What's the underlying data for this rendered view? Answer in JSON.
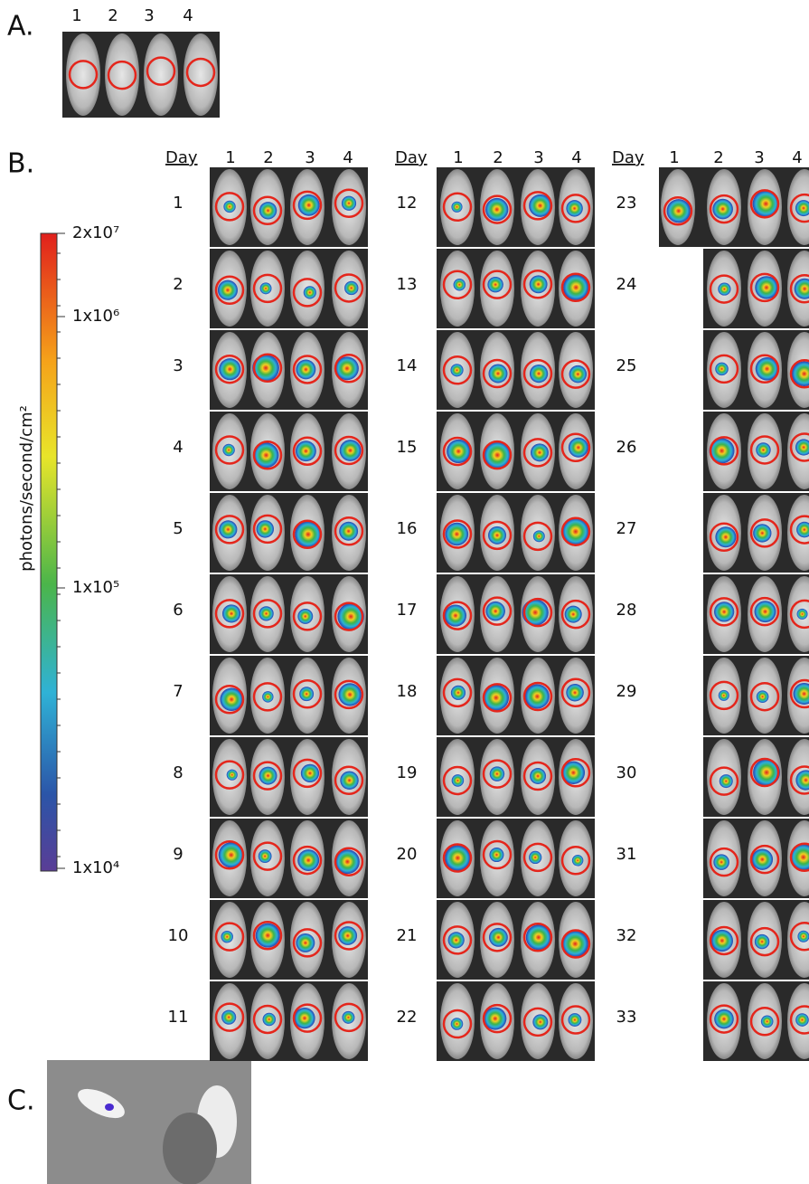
{
  "panel_a": {
    "label": "A.",
    "mouse_numbers": [
      "1",
      "2",
      "3",
      "4"
    ]
  },
  "panel_b": {
    "label": "B.",
    "colorbar": {
      "title": "photons/second/cm²",
      "tick_labels": [
        "2x10⁷",
        "1x10⁶",
        "1x10⁵",
        "1x10⁴"
      ]
    },
    "groups": [
      {
        "day_header": "Day",
        "mouse_numbers": [
          "1",
          "2",
          "3",
          "4"
        ],
        "days": [
          "1",
          "2",
          "3",
          "4",
          "5",
          "6",
          "7",
          "8",
          "9",
          "10",
          "11"
        ]
      },
      {
        "day_header": "Day",
        "mouse_numbers": [
          "1",
          "2",
          "3",
          "4"
        ],
        "days": [
          "12",
          "13",
          "14",
          "15",
          "16",
          "17",
          "18",
          "19",
          "20",
          "21",
          "22"
        ]
      },
      {
        "day_header": "Day",
        "mouse_numbers": [
          "1",
          "2",
          "3",
          "4"
        ],
        "days": [
          "23",
          "24",
          "25",
          "26",
          "27",
          "28",
          "29",
          "30",
          "31",
          "32",
          "33"
        ]
      }
    ]
  },
  "panel_c": {
    "label": "C."
  }
}
